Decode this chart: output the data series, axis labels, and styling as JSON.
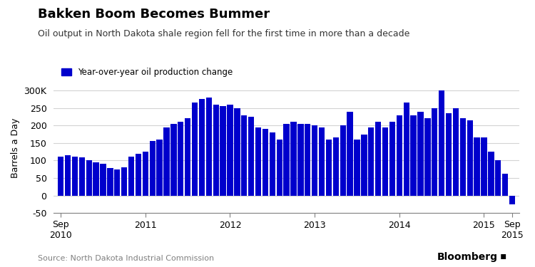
{
  "title": "Bakken Boom Becomes Bummer",
  "subtitle": "Oil output in North Dakota shale region fell for the first time in more than a decade",
  "legend_label": "Year-over-year oil production change",
  "ylabel": "Barrels a Day",
  "source": "Source: North Dakota Industrial Commission",
  "bloomberg": "Bloomberg",
  "bar_color": "#0000CC",
  "background_color": "#f0f0f0",
  "ylim": [
    -50,
    320
  ],
  "yticks": [
    -50,
    0,
    50,
    100,
    150,
    200,
    250,
    300
  ],
  "ytick_labels": [
    "-50",
    "0",
    "50",
    "100",
    "150",
    "200",
    "250",
    "300K"
  ],
  "values": [
    110,
    115,
    110,
    108,
    100,
    95,
    90,
    78,
    75,
    80,
    110,
    120,
    125,
    155,
    160,
    195,
    205,
    210,
    220,
    265,
    275,
    280,
    260,
    255,
    260,
    250,
    230,
    225,
    195,
    190,
    180,
    160,
    205,
    210,
    205,
    205,
    200,
    195,
    160,
    165,
    200,
    240,
    160,
    175,
    195,
    210,
    195,
    210,
    230,
    265,
    230,
    240,
    220,
    250,
    300,
    235,
    250,
    220,
    215,
    165,
    165,
    125,
    100,
    62,
    -25
  ],
  "x_tick_positions": [
    0,
    12,
    24,
    36,
    48,
    60,
    64
  ],
  "x_tick_labels": [
    "Sep\n2010",
    "2011",
    "2012",
    "2013",
    "2014",
    "2015",
    "Sep\n2015"
  ]
}
